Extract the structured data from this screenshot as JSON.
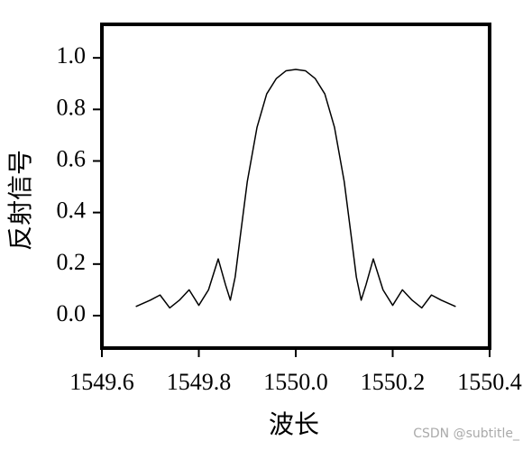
{
  "chart_data": {
    "type": "line",
    "xlabel": "波长",
    "ylabel": "反射信号",
    "watermark": "CSDN @subtitle_",
    "x": [
      1549.67,
      1549.7,
      1549.72,
      1549.74,
      1549.76,
      1549.78,
      1549.8,
      1549.82,
      1549.84,
      1549.855,
      1549.865,
      1549.875,
      1549.885,
      1549.9,
      1549.92,
      1549.94,
      1549.96,
      1549.98,
      1550.0,
      1550.02,
      1550.04,
      1550.06,
      1550.08,
      1550.1,
      1550.115,
      1550.125,
      1550.135,
      1550.145,
      1550.16,
      1550.18,
      1550.2,
      1550.22,
      1550.24,
      1550.26,
      1550.28,
      1550.3,
      1550.33
    ],
    "series": [
      {
        "color": "#000000",
        "values": [
          0.035,
          0.06,
          0.08,
          0.03,
          0.06,
          0.1,
          0.04,
          0.1,
          0.22,
          0.12,
          0.06,
          0.15,
          0.3,
          0.52,
          0.73,
          0.86,
          0.92,
          0.95,
          0.955,
          0.95,
          0.92,
          0.86,
          0.73,
          0.52,
          0.3,
          0.15,
          0.06,
          0.12,
          0.22,
          0.1,
          0.04,
          0.1,
          0.06,
          0.03,
          0.08,
          0.06,
          0.035
        ]
      }
    ],
    "xlim": [
      1549.6,
      1550.4
    ],
    "xticks": [
      1549.6,
      1549.8,
      {
        "value": 1550.0,
        "label": "1550.0"
      },
      1550.2,
      1550.4
    ],
    "ylim": [
      -0.126,
      1.13
    ],
    "yticks": [
      {
        "value": 0,
        "label": "0.0"
      },
      0.2,
      0.4,
      0.6,
      0.8,
      {
        "value": 1,
        "label": "1.0"
      }
    ]
  }
}
